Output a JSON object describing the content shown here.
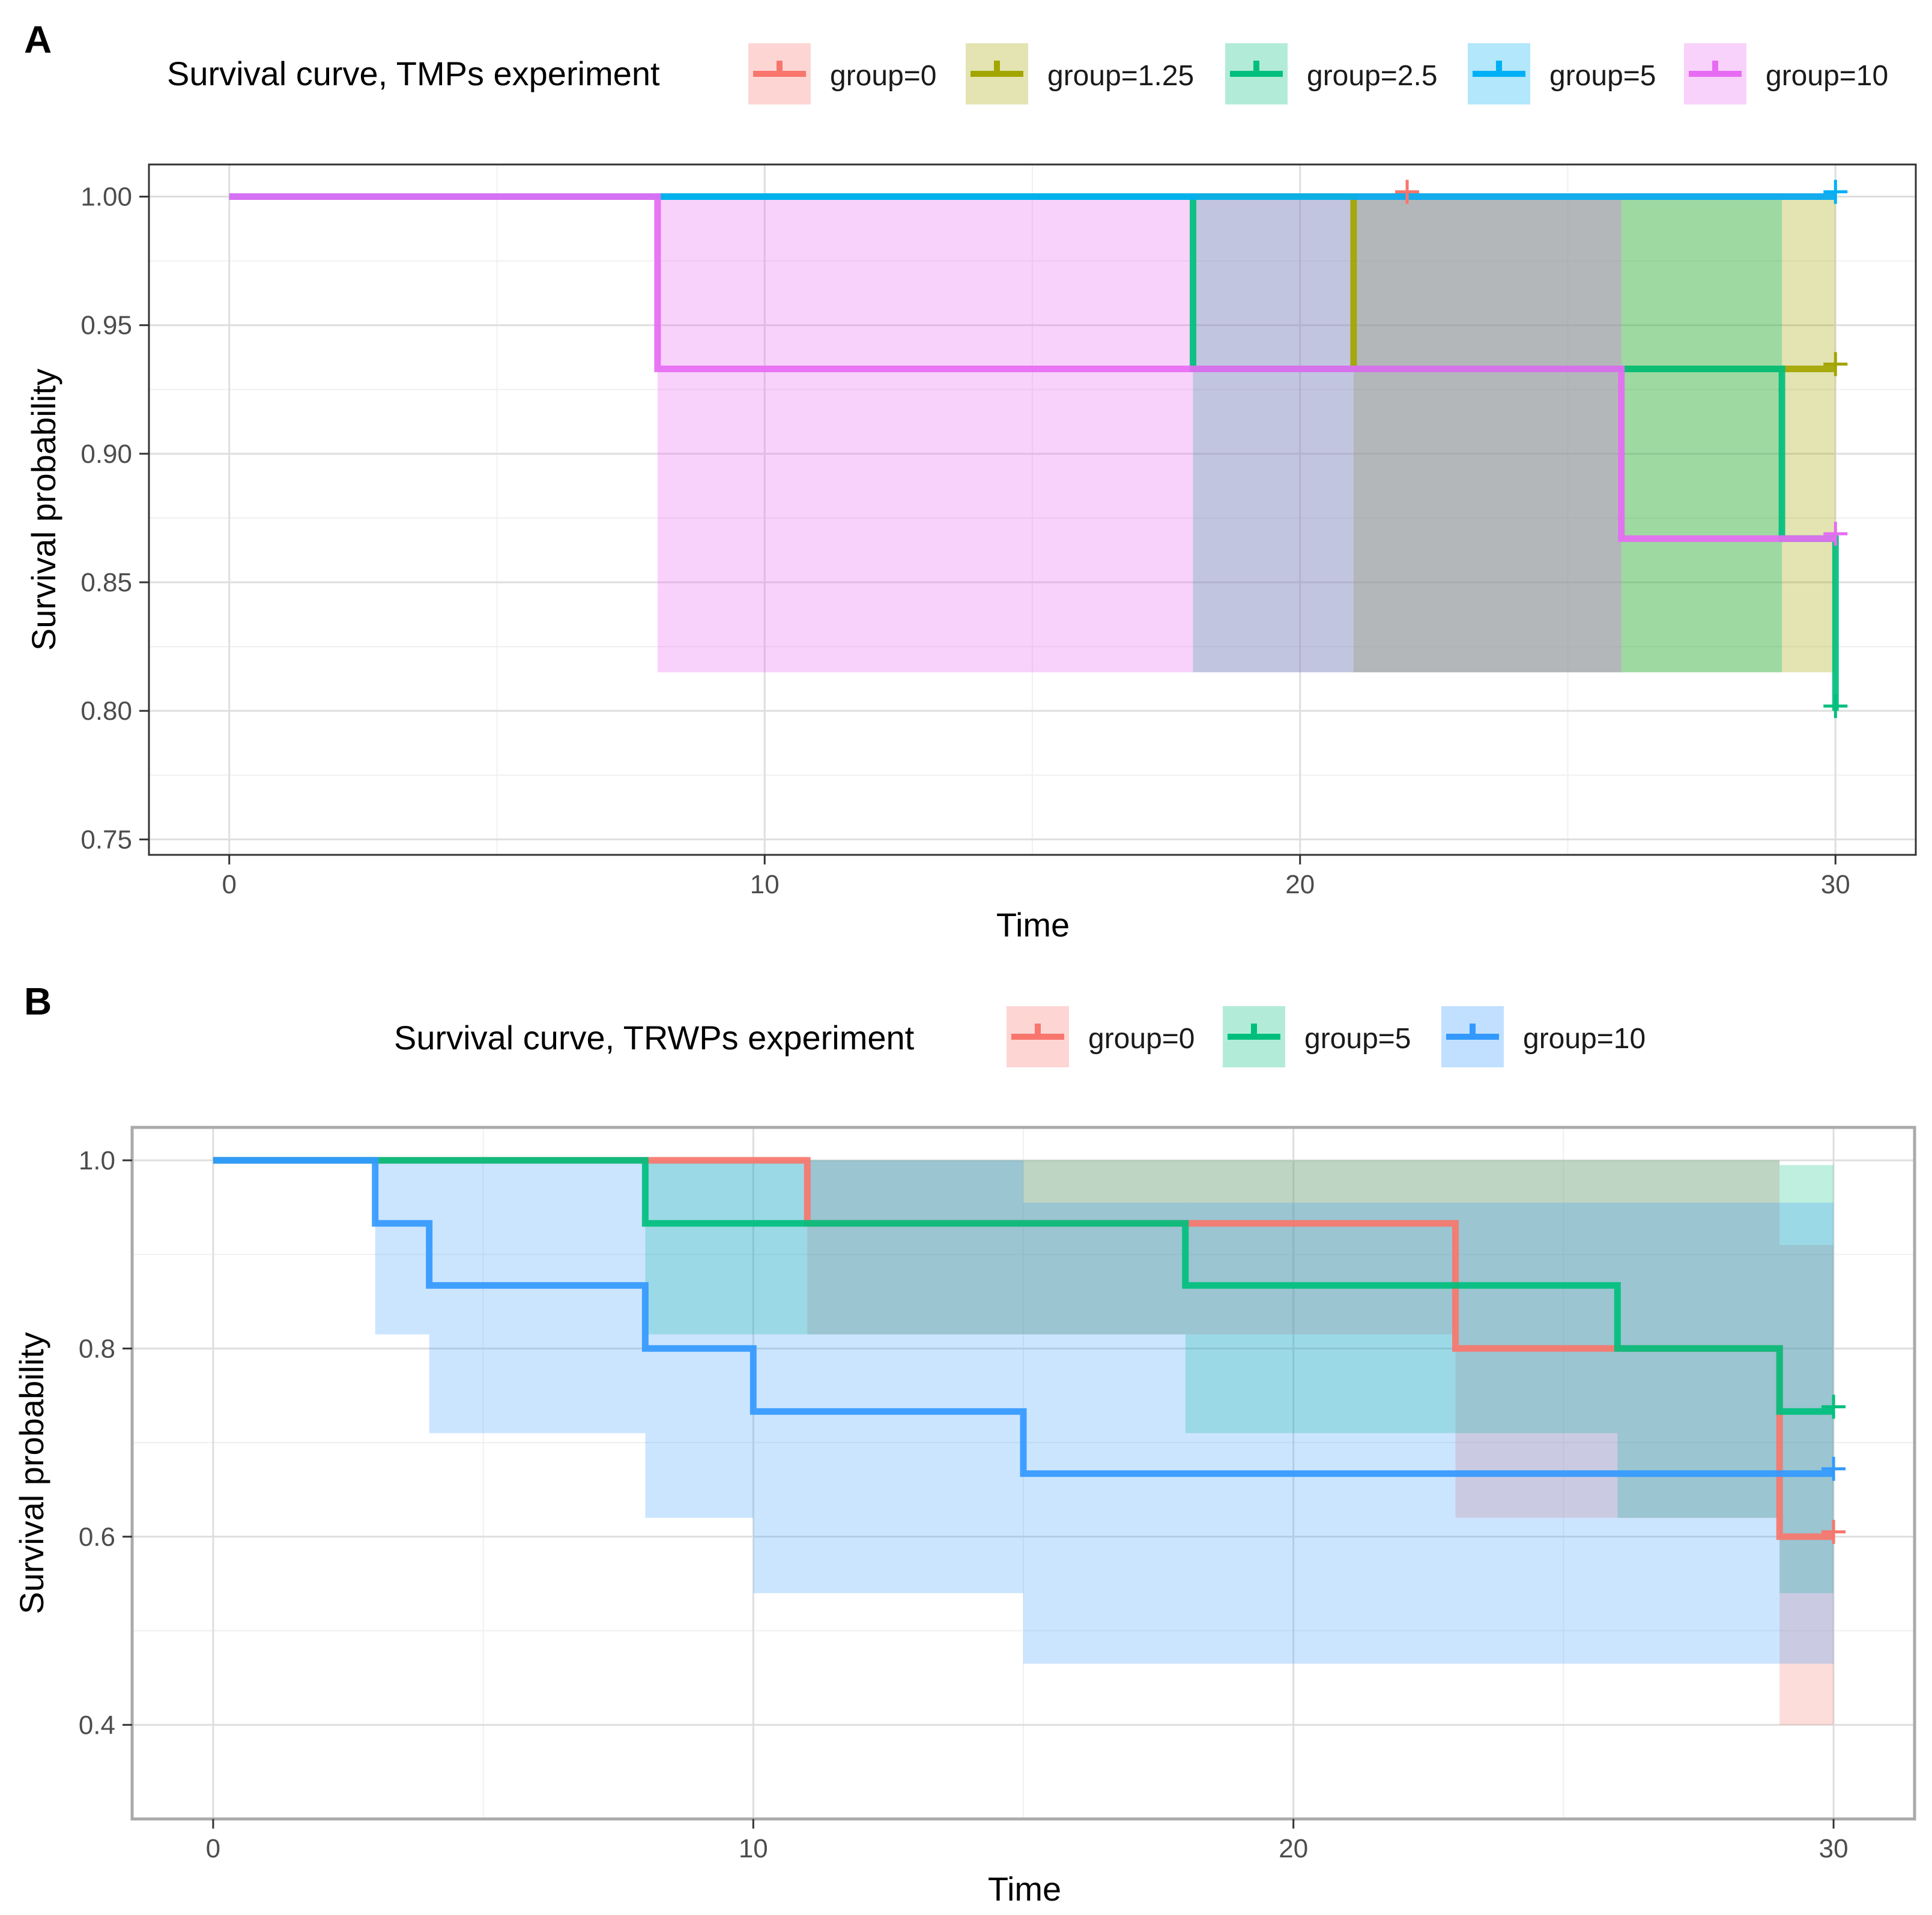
{
  "chart_data": [
    {
      "panel": "A",
      "type": "line",
      "subtype": "kaplan-meier step",
      "legend_title": "Survival curve, TMPs experiment",
      "xlabel": "Time",
      "ylabel": "Survival probability",
      "xlim": [
        -1.5,
        31.5
      ],
      "ylim": [
        0.744,
        1.0125
      ],
      "x_ticks": [
        0,
        10,
        20,
        30
      ],
      "x_tick_labels": [
        "0",
        "10",
        "20",
        "30"
      ],
      "y_ticks": [
        0.75,
        0.8,
        0.85,
        0.9,
        0.95,
        1.0
      ],
      "y_tick_labels": [
        "0.75",
        "0.80",
        "0.85",
        "0.90",
        "0.95",
        "1.00"
      ],
      "grid": true,
      "legend_position": "top",
      "series": [
        {
          "name": "group=0",
          "color": "#F8766D",
          "steps": [
            [
              0,
              1.0
            ],
            [
              30,
              1.0
            ]
          ],
          "censor": [
            [
              22,
              1.0
            ]
          ],
          "ci": []
        },
        {
          "name": "group=1.25",
          "color": "#A3A500",
          "steps": [
            [
              0,
              1.0
            ],
            [
              21,
              1.0
            ],
            [
              21,
              0.933
            ],
            [
              30,
              0.933
            ]
          ],
          "censor": [
            [
              30,
              0.933
            ]
          ],
          "ci": [
            [
              21,
              30,
              0.815,
              1.0
            ]
          ]
        },
        {
          "name": "group=2.5",
          "color": "#00BF7D",
          "steps": [
            [
              0,
              1.0
            ],
            [
              18,
              1.0
            ],
            [
              18,
              0.933
            ],
            [
              29,
              0.933
            ],
            [
              29,
              0.867
            ],
            [
              30,
              0.867
            ],
            [
              30,
              0.8
            ]
          ],
          "censor": [
            [
              30,
              0.8
            ]
          ],
          "ci": [
            [
              18,
              29,
              0.815,
              1.0
            ]
          ]
        },
        {
          "name": "group=5",
          "color": "#00B0F6",
          "steps": [
            [
              0,
              1.0
            ],
            [
              30,
              1.0
            ]
          ],
          "censor": [
            [
              30,
              1.0
            ]
          ],
          "ci": []
        },
        {
          "name": "group=10",
          "color": "#E76BF3",
          "steps": [
            [
              0,
              1.0
            ],
            [
              8,
              1.0
            ],
            [
              8,
              0.933
            ],
            [
              26,
              0.933
            ],
            [
              26,
              0.867
            ],
            [
              30,
              0.867
            ]
          ],
          "censor": [
            [
              30,
              0.867
            ]
          ],
          "ci": [
            [
              8,
              26,
              0.815,
              1.0
            ]
          ]
        }
      ]
    },
    {
      "panel": "B",
      "type": "line",
      "subtype": "kaplan-meier step",
      "legend_title": "Survival curve, TRWPs experiment",
      "xlabel": "Time",
      "ylabel": "Survival probability",
      "xlim": [
        -1.5,
        31.5
      ],
      "ylim": [
        0.3,
        1.035
      ],
      "x_ticks": [
        0,
        10,
        20,
        30
      ],
      "x_tick_labels": [
        "0",
        "10",
        "20",
        "30"
      ],
      "y_ticks": [
        0.4,
        0.6,
        0.8,
        1.0
      ],
      "y_tick_labels": [
        "0.4",
        "0.6",
        "0.8",
        "1.0"
      ],
      "grid": true,
      "legend_position": "top",
      "series": [
        {
          "name": "group=0",
          "color": "#F8766D",
          "steps": [
            [
              0,
              1.0
            ],
            [
              11,
              1.0
            ],
            [
              11,
              0.933
            ],
            [
              23,
              0.933
            ],
            [
              23,
              0.8
            ],
            [
              29,
              0.8
            ],
            [
              29,
              0.6
            ],
            [
              30,
              0.6
            ]
          ],
          "censor": [
            [
              30,
              0.6
            ]
          ],
          "ci": [
            [
              11,
              23,
              0.815,
              1.0
            ],
            [
              23,
              29,
              0.62,
              1.0
            ],
            [
              29,
              30,
              0.4,
              0.91
            ]
          ]
        },
        {
          "name": "group=5",
          "color": "#00BF7D",
          "steps": [
            [
              0,
              1.0
            ],
            [
              8,
              1.0
            ],
            [
              8,
              0.933
            ],
            [
              18,
              0.933
            ],
            [
              18,
              0.867
            ],
            [
              26,
              0.867
            ],
            [
              26,
              0.8
            ],
            [
              29,
              0.8
            ],
            [
              29,
              0.733
            ],
            [
              30,
              0.733
            ]
          ],
          "censor": [
            [
              30,
              0.733
            ]
          ],
          "ci": [
            [
              8,
              18,
              0.815,
              1.0
            ],
            [
              18,
              26,
              0.71,
              1.0
            ],
            [
              26,
              29,
              0.62,
              1.0
            ],
            [
              29,
              30,
              0.54,
              0.995
            ]
          ]
        },
        {
          "name": "group=10",
          "color": "#3399FF",
          "steps": [
            [
              0,
              1.0
            ],
            [
              3,
              1.0
            ],
            [
              3,
              0.933
            ],
            [
              4,
              0.933
            ],
            [
              4,
              0.867
            ],
            [
              8,
              0.867
            ],
            [
              8,
              0.8
            ],
            [
              10,
              0.8
            ],
            [
              10,
              0.733
            ],
            [
              15,
              0.733
            ],
            [
              15,
              0.667
            ],
            [
              30,
              0.667
            ]
          ],
          "censor": [
            [
              30,
              0.667
            ]
          ],
          "ci": [
            [
              3,
              4,
              0.815,
              1.0
            ],
            [
              4,
              8,
              0.71,
              1.0
            ],
            [
              8,
              10,
              0.62,
              1.0
            ],
            [
              10,
              15,
              0.54,
              1.0
            ],
            [
              15,
              30,
              0.465,
              0.955
            ]
          ]
        }
      ]
    }
  ]
}
